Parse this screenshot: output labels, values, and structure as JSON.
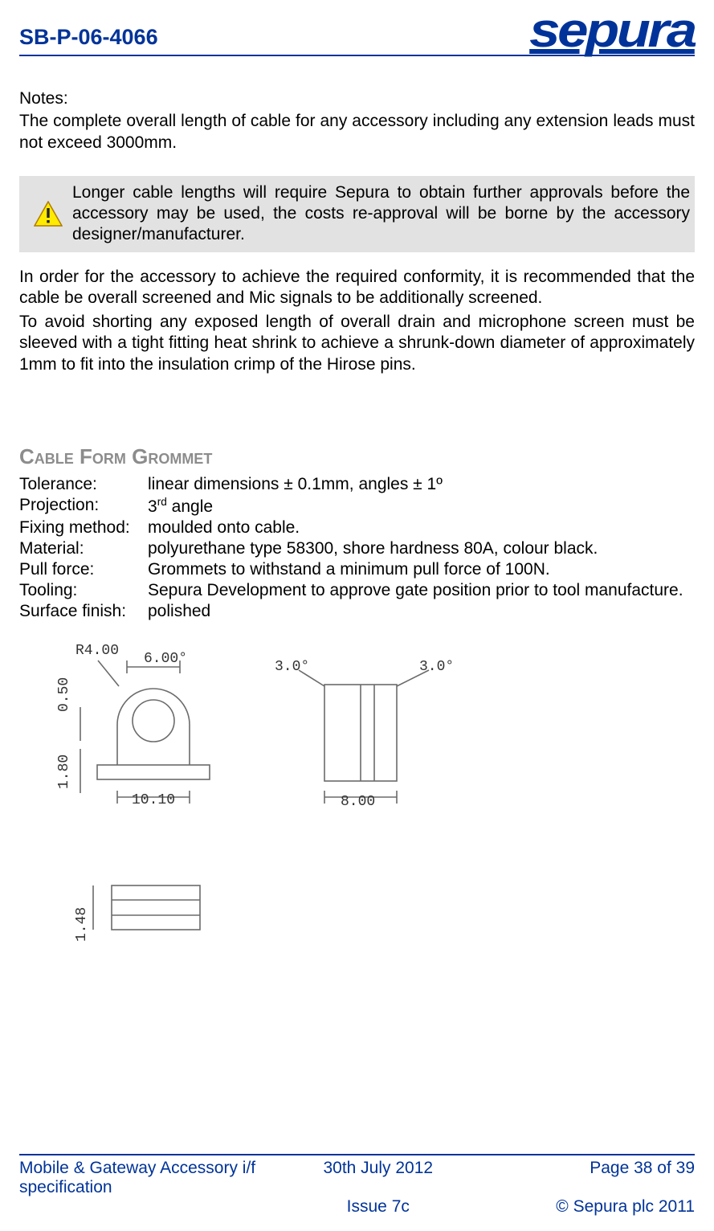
{
  "header": {
    "doc_code": "SB-P-06-4066",
    "logo_text": "sepura",
    "logo_color": "#003399",
    "rule_color": "#003399"
  },
  "body": {
    "notes_label": "Notes:",
    "note_para": "The complete overall length of cable for any accessory including any extension leads must not exceed 3000mm.",
    "warning": {
      "icon": "warning",
      "icon_fill": "#ffeb00",
      "icon_border": "#b07a00",
      "text": "Longer cable lengths will require Sepura to obtain further approvals before the accessory may be used, the costs re-approval will be borne by the accessory designer/manufacturer.",
      "bg_color": "#e2e2e2"
    },
    "para2": "In order for the accessory to achieve the required conformity, it is recommended that the cable be overall screened and Mic signals to be additionally screened.",
    "para3": "To avoid shorting any exposed length of overall drain and microphone screen must be sleeved with a tight fitting heat shrink to achieve a shrunk-down diameter of approximately 1mm to fit into the insulation crimp of the Hirose pins."
  },
  "section": {
    "title": "Cable Form Grommet",
    "title_color": "#8c8c8c",
    "rows": [
      {
        "label": "Tolerance:",
        "value": "linear dimensions ± 0.1mm, angles ± 1º"
      },
      {
        "label": "Projection:",
        "value_html": "3<sup>rd</sup> angle"
      },
      {
        "label": "Fixing method:",
        "value": "moulded onto cable."
      },
      {
        "label": "Material:",
        "value": "polyurethane type 58300, shore hardness 80A, colour black."
      },
      {
        "label": "Pull force:",
        "value": "Grommets to withstand a minimum pull force of 100N."
      },
      {
        "label": "Tooling:",
        "value": "Sepura Development to approve gate position prior to tool manufacture."
      },
      {
        "label": "Surface finish:",
        "value": "polished"
      }
    ]
  },
  "diagram": {
    "annotations": {
      "r4": "R4.00",
      "d6": "6.00°",
      "d05": "0.50",
      "d101": "10.10",
      "d18": "1.80",
      "d148": "1.48",
      "d30a": "3.0°",
      "d30b": "3.0°",
      "d8": "8.00"
    },
    "stroke": "#6b6b6b",
    "fill": "#ffffff"
  },
  "footer": {
    "doc_title": "Mobile & Gateway Accessory i/f specification",
    "date": "30th July 2012",
    "page": "Page 38 of 39",
    "issue": "Issue 7c",
    "copyright": "© Sepura plc 2011",
    "color": "#003399"
  }
}
